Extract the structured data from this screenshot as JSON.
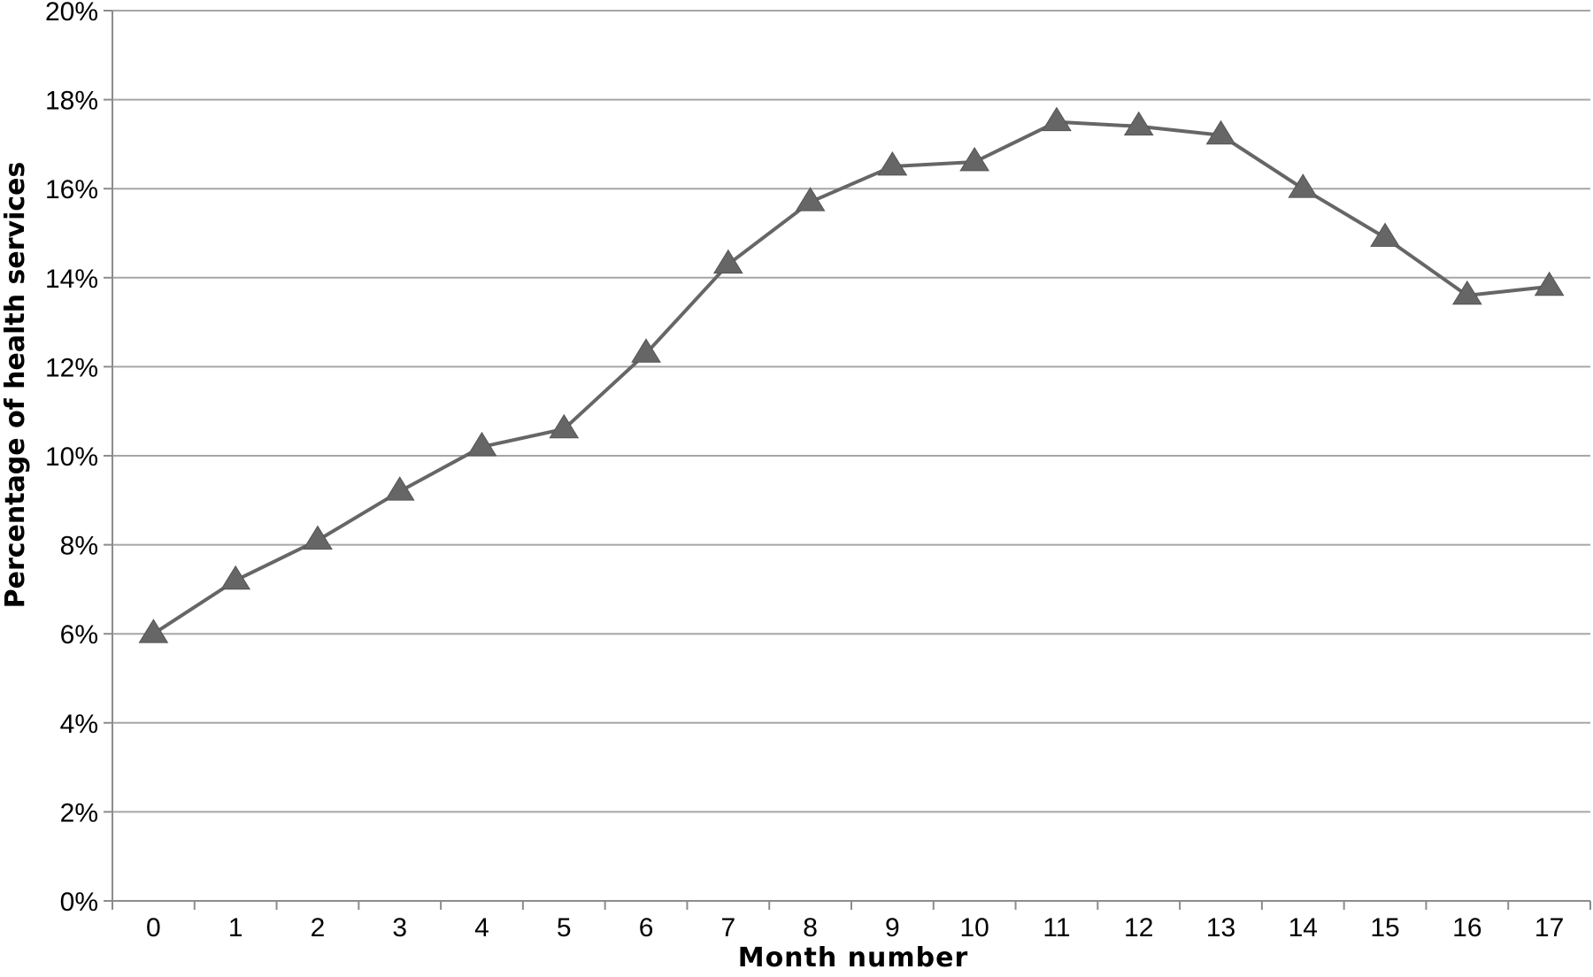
{
  "chart_data": {
    "type": "line",
    "title": "",
    "xlabel": "Month number",
    "ylabel": "Percentage of health services",
    "x": [
      0,
      1,
      2,
      3,
      4,
      5,
      6,
      7,
      8,
      9,
      10,
      11,
      12,
      13,
      14,
      15,
      16,
      17
    ],
    "series": [
      {
        "values": [
          6.0,
          7.2,
          8.1,
          9.2,
          10.2,
          10.6,
          12.3,
          14.3,
          15.7,
          16.5,
          16.6,
          17.5,
          17.4,
          17.2,
          16.0,
          14.9,
          13.6,
          13.8
        ],
        "color": "#666666",
        "marker": "triangle"
      }
    ],
    "xticks": [
      "0",
      "1",
      "2",
      "3",
      "4",
      "5",
      "6",
      "7",
      "8",
      "9",
      "10",
      "11",
      "12",
      "13",
      "14",
      "15",
      "16",
      "17"
    ],
    "yticks": [
      "0%",
      "2%",
      "4%",
      "6%",
      "8%",
      "10%",
      "12%",
      "14%",
      "16%",
      "18%",
      "20%"
    ],
    "ylim": [
      0,
      20
    ],
    "grid": "horizontal",
    "gridColor": "#a6a6a6",
    "axisColor": "#8c8c8c"
  }
}
